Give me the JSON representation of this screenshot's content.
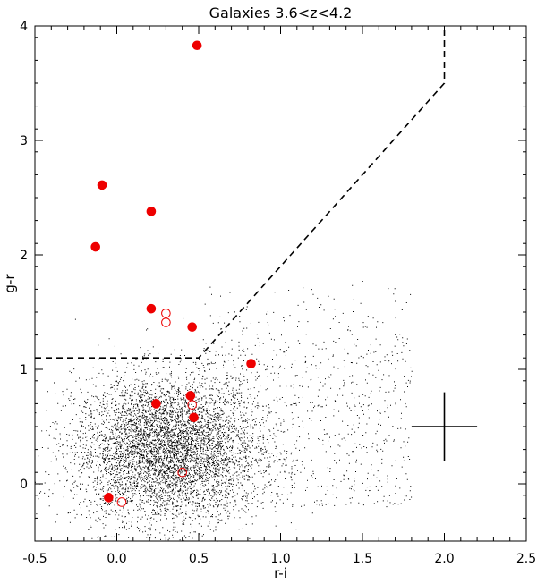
{
  "chart_data": {
    "type": "scatter",
    "title": "Galaxies  3.6<z<4.2",
    "xlabel": "r-i",
    "ylabel": "g-r",
    "xlim": [
      -0.5,
      2.5
    ],
    "ylim": [
      -0.5,
      4.0
    ],
    "grid": false,
    "x_ticks": [
      -0.5,
      0.0,
      0.5,
      1.0,
      1.5,
      2.0,
      2.5
    ],
    "x_tick_labels": [
      "-0.5",
      "0.0",
      "0.5",
      "1.0",
      "1.5",
      "2.0",
      "2.5"
    ],
    "y_ticks": [
      0,
      1,
      2,
      3,
      4
    ],
    "y_tick_labels": [
      "0",
      "1",
      "2",
      "3",
      "4"
    ],
    "colors": {
      "highlight": "#ee0000",
      "background": "#000000"
    },
    "background_points": {
      "description_shape": "dense cloud",
      "count": 5500,
      "center": [
        0.3,
        0.3
      ],
      "spread": [
        0.28,
        0.32
      ],
      "extended_tail": {
        "count": 900,
        "x_range": [
          0.5,
          1.8
        ],
        "y_range": [
          -0.2,
          1.8
        ]
      }
    },
    "series": [
      {
        "marker": "filled-circle",
        "points": [
          [
            0.49,
            3.83
          ],
          [
            -0.09,
            2.61
          ],
          [
            0.21,
            2.38
          ],
          [
            -0.13,
            2.07
          ],
          [
            0.21,
            1.53
          ],
          [
            0.46,
            1.37
          ],
          [
            0.82,
            1.05
          ],
          [
            0.45,
            0.77
          ],
          [
            0.24,
            0.7
          ],
          [
            0.47,
            0.58
          ],
          [
            -0.05,
            -0.12
          ]
        ]
      },
      {
        "marker": "open-circle",
        "points": [
          [
            0.3,
            1.49
          ],
          [
            0.3,
            1.41
          ],
          [
            0.46,
            0.69
          ],
          [
            0.4,
            0.1
          ],
          [
            0.03,
            -0.16
          ]
        ]
      }
    ],
    "selection_boundary": {
      "style": "dashed",
      "points": [
        [
          -0.5,
          1.1
        ],
        [
          0.5,
          1.1
        ],
        [
          2.0,
          3.5
        ],
        [
          2.0,
          4.0
        ]
      ]
    },
    "error_bar": {
      "center": [
        2.0,
        0.5
      ],
      "x_half_width": 0.2,
      "y_half_height": 0.3
    }
  }
}
